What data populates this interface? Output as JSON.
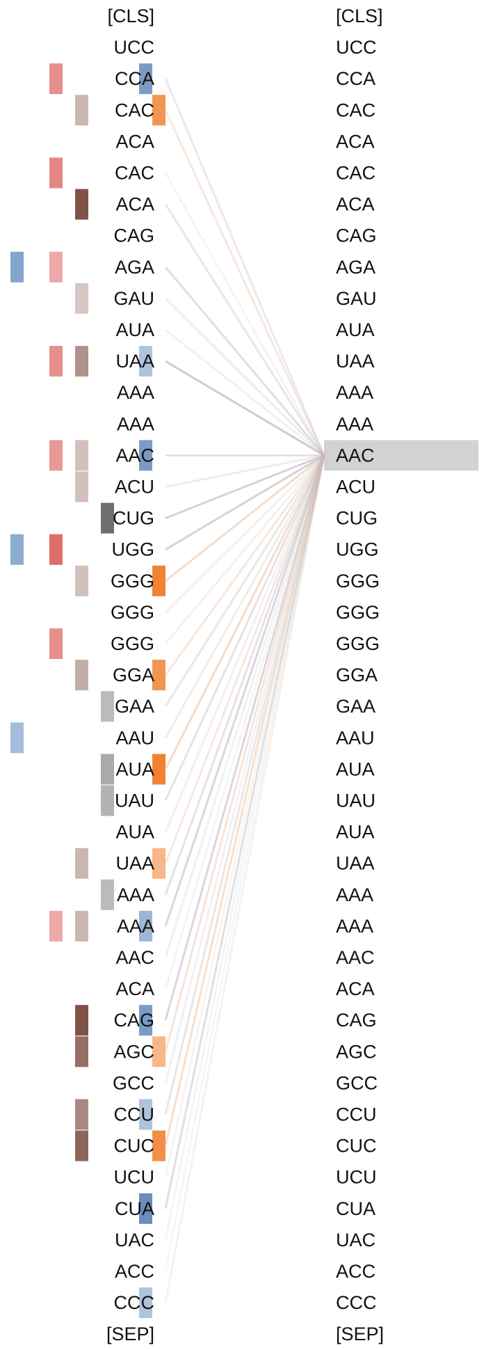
{
  "left_tokens": [
    "[CLS]",
    "UCC",
    "CCA",
    "CAC",
    "ACA",
    "CAC",
    "ACA",
    "CAG",
    "AGA",
    "GAU",
    "AUA",
    "UAA",
    "AAA",
    "AAA",
    "AAC",
    "ACU",
    "CUG",
    "UGG",
    "GGG",
    "GGG",
    "GGG",
    "GGA",
    "GAA",
    "AAU",
    "AUA",
    "UAU",
    "AUA",
    "UAA",
    "AAA",
    "AAA",
    "AAC",
    "ACA",
    "CAG",
    "AGC",
    "GCC",
    "CCU",
    "CUC",
    "UCU",
    "CUA",
    "UAC",
    "ACC",
    "CCC",
    "[SEP]"
  ],
  "right_tokens": [
    "[CLS]",
    "UCC",
    "CCA",
    "CAC",
    "ACA",
    "CAC",
    "ACA",
    "CAG",
    "AGA",
    "GAU",
    "AUA",
    "UAA",
    "AAA",
    "AAA",
    "AAC",
    "ACU",
    "CUG",
    "UGG",
    "GGG",
    "GGG",
    "GGG",
    "GGA",
    "GAA",
    "AAU",
    "AUA",
    "UAU",
    "AUA",
    "UAA",
    "AAA",
    "AAA",
    "AAC",
    "ACA",
    "CAG",
    "AGC",
    "GCC",
    "CCU",
    "CUC",
    "UCU",
    "CUA",
    "UAC",
    "ACC",
    "CCC",
    "[SEP]"
  ],
  "selected_target_index": 14,
  "colors": {
    "head_a": "#5b87bd",
    "head_b": "#d9534f",
    "head_c": "#7a4a3e",
    "head_d": "#555555",
    "head_e": "#4f79b2",
    "head_f": "#f07b27",
    "gray_line": "#b9b6bd",
    "orange_line": "#eec4a6",
    "highlight": "#d2d2d2"
  },
  "attention_lines": [
    {
      "from": 2,
      "color": "gray",
      "opacity": 0.3
    },
    {
      "from": 3,
      "color": "orange",
      "opacity": 0.4
    },
    {
      "from": 5,
      "color": "gray",
      "opacity": 0.15
    },
    {
      "from": 6,
      "color": "gray",
      "opacity": 0.35
    },
    {
      "from": 8,
      "color": "gray",
      "opacity": 0.45
    },
    {
      "from": 9,
      "color": "gray",
      "opacity": 0.25
    },
    {
      "from": 10,
      "color": "gray",
      "opacity": 0.2
    },
    {
      "from": 11,
      "color": "gray",
      "opacity": 0.7
    },
    {
      "from": 14,
      "color": "gray",
      "opacity": 0.4
    },
    {
      "from": 15,
      "color": "gray",
      "opacity": 0.25
    },
    {
      "from": 16,
      "color": "gray",
      "opacity": 0.6
    },
    {
      "from": 17,
      "color": "gray",
      "opacity": 0.6
    },
    {
      "from": 18,
      "color": "orange",
      "opacity": 0.6
    },
    {
      "from": 19,
      "color": "gray",
      "opacity": 0.2
    },
    {
      "from": 20,
      "color": "gray",
      "opacity": 0.2
    },
    {
      "from": 21,
      "color": "orange",
      "opacity": 0.4
    },
    {
      "from": 22,
      "color": "gray",
      "opacity": 0.35
    },
    {
      "from": 23,
      "color": "gray",
      "opacity": 0.25
    },
    {
      "from": 24,
      "color": "orange",
      "opacity": 0.6
    },
    {
      "from": 25,
      "color": "gray",
      "opacity": 0.4
    },
    {
      "from": 26,
      "color": "gray",
      "opacity": 0.2
    },
    {
      "from": 27,
      "color": "orange",
      "opacity": 0.4
    },
    {
      "from": 28,
      "color": "gray",
      "opacity": 0.4
    },
    {
      "from": 29,
      "color": "gray",
      "opacity": 0.55
    },
    {
      "from": 30,
      "color": "gray",
      "opacity": 0.2
    },
    {
      "from": 31,
      "color": "gray",
      "opacity": 0.15
    },
    {
      "from": 32,
      "color": "gray",
      "opacity": 0.55
    },
    {
      "from": 33,
      "color": "orange",
      "opacity": 0.45
    },
    {
      "from": 34,
      "color": "gray",
      "opacity": 0.2
    },
    {
      "from": 35,
      "color": "gray",
      "opacity": 0.35
    },
    {
      "from": 36,
      "color": "orange",
      "opacity": 0.55
    },
    {
      "from": 37,
      "color": "gray",
      "opacity": 0.15
    },
    {
      "from": 38,
      "color": "gray",
      "opacity": 0.45
    },
    {
      "from": 39,
      "color": "gray",
      "opacity": 0.15
    },
    {
      "from": 40,
      "color": "gray",
      "opacity": 0.12
    },
    {
      "from": 41,
      "color": "orange",
      "opacity": 0.25
    }
  ],
  "head_markers": [
    {
      "head": "head_b",
      "row": 2,
      "opacity": 0.65
    },
    {
      "head": "head_b",
      "row": 5,
      "opacity": 0.7
    },
    {
      "head": "head_b",
      "row": 8,
      "opacity": 0.5
    },
    {
      "head": "head_b",
      "row": 11,
      "opacity": 0.65
    },
    {
      "head": "head_b",
      "row": 14,
      "opacity": 0.6
    },
    {
      "head": "head_b",
      "row": 17,
      "opacity": 0.85
    },
    {
      "head": "head_b",
      "row": 20,
      "opacity": 0.65
    },
    {
      "head": "head_b",
      "row": 29,
      "opacity": 0.5
    },
    {
      "head": "head_a",
      "row": 8,
      "opacity": 0.75
    },
    {
      "head": "head_a",
      "row": 17,
      "opacity": 0.7
    },
    {
      "head": "head_a",
      "row": 23,
      "opacity": 0.55
    },
    {
      "head": "head_c",
      "row": 3,
      "opacity": 0.4
    },
    {
      "head": "head_c",
      "row": 6,
      "opacity": 0.95
    },
    {
      "head": "head_c",
      "row": 9,
      "opacity": 0.3
    },
    {
      "head": "head_c",
      "row": 11,
      "opacity": 0.6
    },
    {
      "head": "head_c",
      "row": 14,
      "opacity": 0.35
    },
    {
      "head": "head_c",
      "row": 15,
      "opacity": 0.35
    },
    {
      "head": "head_c",
      "row": 18,
      "opacity": 0.35
    },
    {
      "head": "head_c",
      "row": 21,
      "opacity": 0.45
    },
    {
      "head": "head_c",
      "row": 27,
      "opacity": 0.4
    },
    {
      "head": "head_c",
      "row": 29,
      "opacity": 0.4
    },
    {
      "head": "head_c",
      "row": 32,
      "opacity": 0.95
    },
    {
      "head": "head_c",
      "row": 33,
      "opacity": 0.8
    },
    {
      "head": "head_c",
      "row": 35,
      "opacity": 0.65
    },
    {
      "head": "head_c",
      "row": 36,
      "opacity": 0.85
    },
    {
      "head": "head_d",
      "row": 16,
      "opacity": 0.85
    },
    {
      "head": "head_d",
      "row": 22,
      "opacity": 0.4
    },
    {
      "head": "head_d",
      "row": 24,
      "opacity": 0.5
    },
    {
      "head": "head_d",
      "row": 25,
      "opacity": 0.45
    },
    {
      "head": "head_d",
      "row": 28,
      "opacity": 0.4
    },
    {
      "head": "head_e",
      "row": 2,
      "opacity": 0.75
    },
    {
      "head": "head_e",
      "row": 11,
      "opacity": 0.45
    },
    {
      "head": "head_e",
      "row": 14,
      "opacity": 0.75
    },
    {
      "head": "head_e",
      "row": 29,
      "opacity": 0.55
    },
    {
      "head": "head_e",
      "row": 32,
      "opacity": 0.75
    },
    {
      "head": "head_e",
      "row": 35,
      "opacity": 0.45
    },
    {
      "head": "head_e",
      "row": 38,
      "opacity": 0.85
    },
    {
      "head": "head_e",
      "row": 41,
      "opacity": 0.45
    },
    {
      "head": "head_f",
      "row": 3,
      "opacity": 0.8
    },
    {
      "head": "head_f",
      "row": 18,
      "opacity": 0.95
    },
    {
      "head": "head_f",
      "row": 21,
      "opacity": 0.8
    },
    {
      "head": "head_f",
      "row": 24,
      "opacity": 0.95
    },
    {
      "head": "head_f",
      "row": 27,
      "opacity": 0.55
    },
    {
      "head": "head_f",
      "row": 33,
      "opacity": 0.55
    },
    {
      "head": "head_f",
      "row": 36,
      "opacity": 0.85
    }
  ]
}
